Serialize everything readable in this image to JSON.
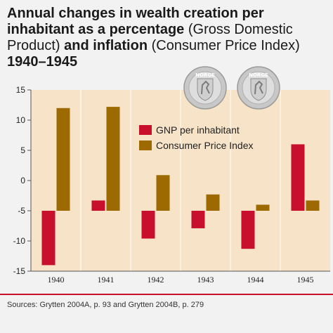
{
  "title": {
    "part1": "Annual changes in wealth creation per inhabitant as a percentage",
    "part2": " (Gross Domestic Product) ",
    "part3": "and inflation",
    "part4": " (Consumer Price Index)",
    "part5": "1940–1945"
  },
  "source": "Sources: Grytten 2004A, p. 93 and Grytten 2004B, p. 279",
  "coins": {
    "legend_text": "NORGE"
  },
  "colors": {
    "plot_bg": "#f7e3c7",
    "gnp": "#c8102e",
    "cpi": "#9c6a00",
    "accent_rule": "#c8102e"
  },
  "chart_data": {
    "type": "bar",
    "categories": [
      "1940",
      "1941",
      "1942",
      "1943",
      "1944",
      "1945"
    ],
    "series": [
      {
        "name": "GNP per inhabitant",
        "values": [
          -14,
          -3.3,
          -9.6,
          -7.9,
          -11.3,
          6
        ]
      },
      {
        "name": "Consumer Price Index",
        "values": [
          12,
          12.2,
          0.9,
          -2.3,
          -4,
          -3.3
        ]
      }
    ],
    "ylim": [
      -15,
      15
    ],
    "yticks": [
      15,
      10,
      5,
      0,
      -5,
      -10,
      -15
    ],
    "ytick_labels": [
      "15",
      "10",
      "5",
      "0",
      "-5",
      "-10",
      "-15"
    ],
    "bar_baseline": -5,
    "legend_position": "upper-center"
  }
}
